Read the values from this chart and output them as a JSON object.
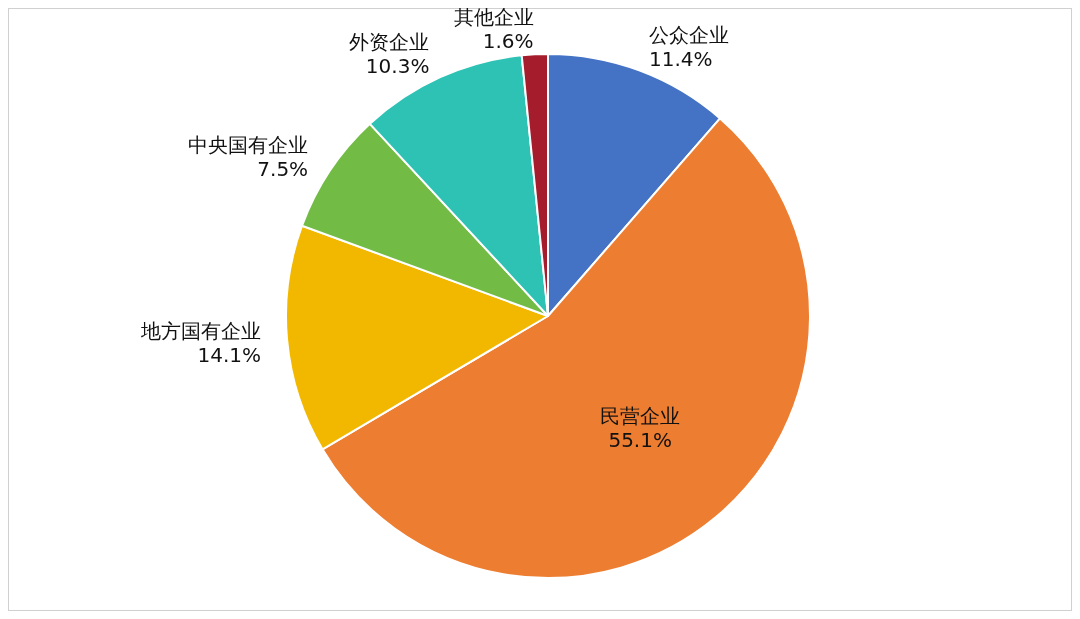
{
  "chart_data": {
    "type": "pie",
    "categories": [
      "公众企业",
      "民营企业",
      "地方国有企业",
      "中央国有企业",
      "外资企业",
      "其他企业"
    ],
    "values": [
      11.4,
      55.1,
      14.1,
      7.5,
      10.3,
      1.6
    ],
    "colors": [
      "#4472c4",
      "#ed7d31",
      "#f2b800",
      "#72bb45",
      "#2ec2b5",
      "#a51d2d"
    ],
    "value_labels": [
      "11.4%",
      "55.1%",
      "14.1%",
      "7.5%",
      "10.3%",
      "1.6%"
    ]
  }
}
